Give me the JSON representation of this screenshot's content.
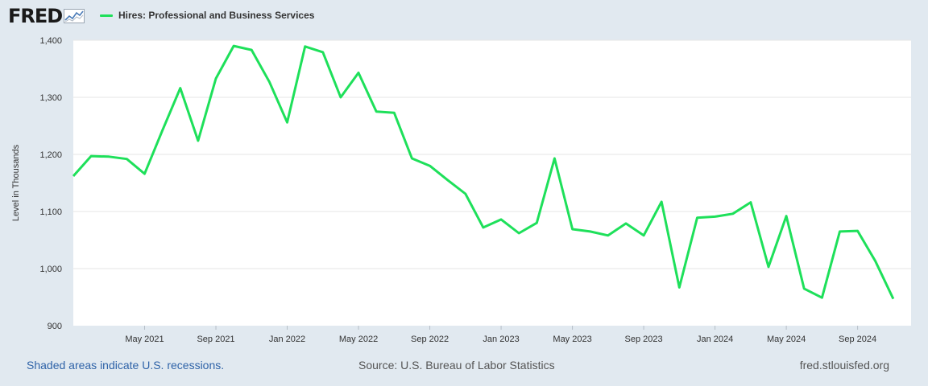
{
  "header": {
    "logo_text": "FRED",
    "logo_icon": "trend-line-icon",
    "legend_label": "Hires: Professional and Business Services"
  },
  "colors": {
    "series": "#1ee05a",
    "plot_bg": "#ffffff",
    "page_bg": "#e1e9f0",
    "grid": "#e6e6e6"
  },
  "chart_data": {
    "type": "line",
    "title": "",
    "xlabel": "",
    "ylabel": "Level in Thousands",
    "ylim": [
      900,
      1400
    ],
    "xlim": [
      "2021-01",
      "2024-12"
    ],
    "yticks": [
      900,
      1000,
      1100,
      1200,
      1300,
      1400
    ],
    "ytick_labels": [
      "900",
      "1,000",
      "1,100",
      "1,200",
      "1,300",
      "1,400"
    ],
    "xticks": [
      "2021-05",
      "2021-09",
      "2022-01",
      "2022-05",
      "2022-09",
      "2023-01",
      "2023-05",
      "2023-09",
      "2024-01",
      "2024-05",
      "2024-09"
    ],
    "xtick_labels": [
      "May 2021",
      "Sep 2021",
      "Jan 2022",
      "May 2022",
      "Sep 2022",
      "Jan 2023",
      "May 2023",
      "Sep 2023",
      "Jan 2024",
      "May 2024",
      "Sep 2024"
    ],
    "grid": true,
    "legend": "top-left",
    "series": [
      {
        "name": "Hires: Professional and Business Services",
        "x": [
          "2021-01",
          "2021-02",
          "2021-03",
          "2021-04",
          "2021-05",
          "2021-06",
          "2021-07",
          "2021-08",
          "2021-09",
          "2021-10",
          "2021-11",
          "2021-12",
          "2022-01",
          "2022-02",
          "2022-03",
          "2022-04",
          "2022-05",
          "2022-06",
          "2022-07",
          "2022-08",
          "2022-09",
          "2022-10",
          "2022-11",
          "2022-12",
          "2023-01",
          "2023-02",
          "2023-03",
          "2023-04",
          "2023-05",
          "2023-06",
          "2023-07",
          "2023-08",
          "2023-09",
          "2023-10",
          "2023-11",
          "2023-12",
          "2024-01",
          "2024-02",
          "2024-03",
          "2024-04",
          "2024-05",
          "2024-06",
          "2024-07",
          "2024-08",
          "2024-09",
          "2024-10",
          "2024-11"
        ],
        "values": [
          1162,
          1197,
          1196,
          1192,
          1166,
          1242,
          1316,
          1224,
          1333,
          1390,
          1383,
          1327,
          1256,
          1389,
          1379,
          1300,
          1343,
          1275,
          1273,
          1193,
          1180,
          1155,
          1131,
          1072,
          1086,
          1062,
          1080,
          1193,
          1069,
          1065,
          1058,
          1079,
          1058,
          1117,
          967,
          1089,
          1091,
          1096,
          1116,
          1003,
          1092,
          965,
          949,
          1065,
          1066,
          1013,
          947
        ]
      }
    ]
  },
  "footer": {
    "recessions": "Shaded areas indicate U.S. recessions.",
    "source": "Source: U.S. Bureau of Labor Statistics",
    "site": "fred.stlouisfed.org"
  }
}
